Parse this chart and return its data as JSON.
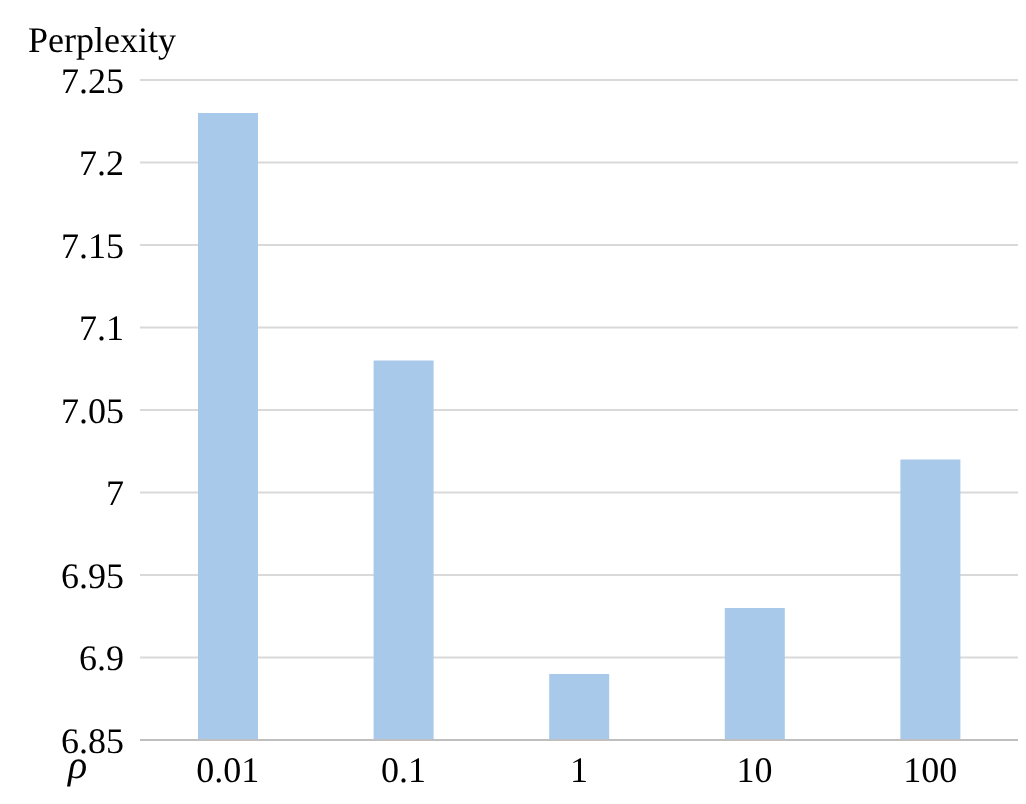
{
  "chart_data": {
    "type": "bar",
    "xlabel": "ρ",
    "ylabel": "Perplexity",
    "categories": [
      "0.01",
      "0.1",
      "1",
      "10",
      "100"
    ],
    "values": [
      7.23,
      7.08,
      6.89,
      6.93,
      7.02
    ],
    "color": "#a9c9ea",
    "ylim": [
      6.85,
      7.25
    ],
    "yticks": [
      6.85,
      6.9,
      6.95,
      7,
      7.05,
      7.1,
      7.15,
      7.2,
      7.25
    ],
    "grid": "y"
  }
}
